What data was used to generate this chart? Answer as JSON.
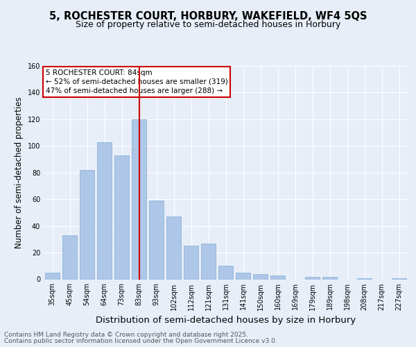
{
  "title": "5, ROCHESTER COURT, HORBURY, WAKEFIELD, WF4 5QS",
  "subtitle": "Size of property relative to semi-detached houses in Horbury",
  "xlabel": "Distribution of semi-detached houses by size in Horbury",
  "ylabel": "Number of semi-detached properties",
  "categories": [
    "35sqm",
    "45sqm",
    "54sqm",
    "64sqm",
    "73sqm",
    "83sqm",
    "93sqm",
    "102sqm",
    "112sqm",
    "121sqm",
    "131sqm",
    "141sqm",
    "150sqm",
    "160sqm",
    "169sqm",
    "179sqm",
    "189sqm",
    "198sqm",
    "208sqm",
    "217sqm",
    "227sqm"
  ],
  "values": [
    5,
    33,
    82,
    103,
    93,
    120,
    59,
    47,
    25,
    27,
    10,
    5,
    4,
    3,
    0,
    2,
    2,
    0,
    1,
    0,
    1
  ],
  "bar_color": "#aec6e8",
  "bar_edgecolor": "#8ab4d8",
  "highlight_index": 5,
  "highlight_color": "#cc0000",
  "annotation_title": "5 ROCHESTER COURT: 84sqm",
  "annotation_line1": "← 52% of semi-detached houses are smaller (319)",
  "annotation_line2": "47% of semi-detached houses are larger (288) →",
  "annotation_box_color": "#ffffff",
  "annotation_box_edgecolor": "#cc0000",
  "footer_line1": "Contains HM Land Registry data © Crown copyright and database right 2025.",
  "footer_line2": "Contains public sector information licensed under the Open Government Licence v3.0.",
  "background_color": "#e8eef8",
  "plot_bg_color": "#e8eef8",
  "ylim": [
    0,
    160
  ],
  "yticks": [
    0,
    20,
    40,
    60,
    80,
    100,
    120,
    140,
    160
  ],
  "title_fontsize": 10.5,
  "subtitle_fontsize": 9,
  "xlabel_fontsize": 9.5,
  "ylabel_fontsize": 8.5,
  "tick_fontsize": 7,
  "footer_fontsize": 6.5,
  "annotation_fontsize": 7.5
}
